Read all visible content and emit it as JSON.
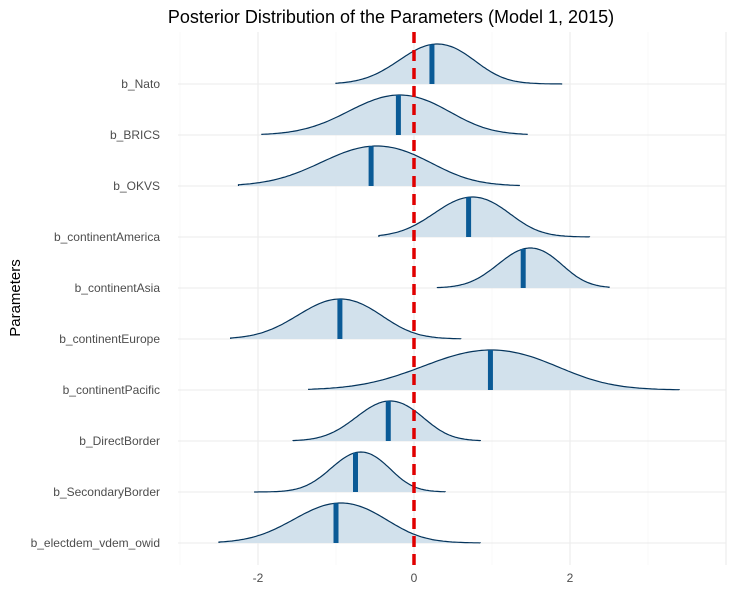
{
  "chart_data": {
    "type": "ridgeline",
    "title": "Posterior Distribution of the Parameters (Model 1, 2015)",
    "ylabel": "Parameters",
    "xlabel": "",
    "xlim": [
      -3.0,
      4.0
    ],
    "x_ticks": [
      -2,
      0,
      2
    ],
    "grid": true,
    "reference_line": {
      "x": 0,
      "color": "#e00000",
      "style": "dashed"
    },
    "fill_color": "#d2e1ec",
    "outline_color": "#04345c",
    "median_color": "#0a5a96",
    "series": [
      {
        "name": "b_Nato",
        "min": -1.0,
        "max": 1.9,
        "peak": 0.25,
        "sd": 0.45,
        "median": 0.23
      },
      {
        "name": "b_BRICS",
        "min": -1.95,
        "max": 1.45,
        "peak": -0.25,
        "sd": 0.6,
        "median": -0.2
      },
      {
        "name": "b_OKVS",
        "min": -2.25,
        "max": 1.35,
        "peak": -0.55,
        "sd": 0.65,
        "median": -0.55
      },
      {
        "name": "b_continentAmerica",
        "min": -0.45,
        "max": 2.25,
        "peak": 0.7,
        "sd": 0.45,
        "median": 0.7
      },
      {
        "name": "b_continentAsia",
        "min": 0.3,
        "max": 2.5,
        "peak": 1.45,
        "sd": 0.38,
        "median": 1.4
      },
      {
        "name": "b_continentEurope",
        "min": -2.35,
        "max": 0.6,
        "peak": -1.0,
        "sd": 0.5,
        "median": -0.95
      },
      {
        "name": "b_continentPacific",
        "min": -1.35,
        "max": 3.4,
        "peak": 0.9,
        "sd": 0.8,
        "median": 0.98
      },
      {
        "name": "b_DirectBorder",
        "min": -1.55,
        "max": 0.85,
        "peak": -0.35,
        "sd": 0.4,
        "median": -0.33
      },
      {
        "name": "b_SecondaryBorder",
        "min": -2.05,
        "max": 0.4,
        "peak": -0.72,
        "sd": 0.35,
        "median": -0.75
      },
      {
        "name": "b_electdem_vdem_owid",
        "min": -2.5,
        "max": 0.85,
        "peak": -1.0,
        "sd": 0.55,
        "median": -1.0
      }
    ]
  }
}
